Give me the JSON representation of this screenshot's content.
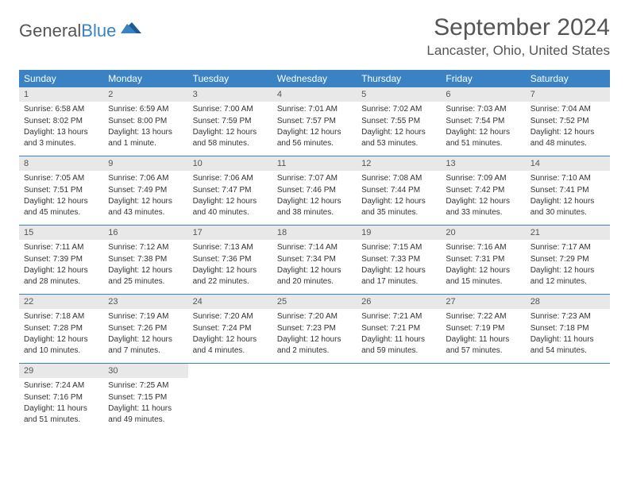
{
  "brand": {
    "part1": "General",
    "part2": "Blue"
  },
  "title": "September 2024",
  "location": "Lancaster, Ohio, United States",
  "header_bg": "#3b82c4",
  "daynum_bg": "#e8e8e8",
  "weekdays": [
    "Sunday",
    "Monday",
    "Tuesday",
    "Wednesday",
    "Thursday",
    "Friday",
    "Saturday"
  ],
  "weeks": [
    [
      {
        "num": "1",
        "sunrise": "Sunrise: 6:58 AM",
        "sunset": "Sunset: 8:02 PM",
        "daylight": "Daylight: 13 hours and 3 minutes."
      },
      {
        "num": "2",
        "sunrise": "Sunrise: 6:59 AM",
        "sunset": "Sunset: 8:00 PM",
        "daylight": "Daylight: 13 hours and 1 minute."
      },
      {
        "num": "3",
        "sunrise": "Sunrise: 7:00 AM",
        "sunset": "Sunset: 7:59 PM",
        "daylight": "Daylight: 12 hours and 58 minutes."
      },
      {
        "num": "4",
        "sunrise": "Sunrise: 7:01 AM",
        "sunset": "Sunset: 7:57 PM",
        "daylight": "Daylight: 12 hours and 56 minutes."
      },
      {
        "num": "5",
        "sunrise": "Sunrise: 7:02 AM",
        "sunset": "Sunset: 7:55 PM",
        "daylight": "Daylight: 12 hours and 53 minutes."
      },
      {
        "num": "6",
        "sunrise": "Sunrise: 7:03 AM",
        "sunset": "Sunset: 7:54 PM",
        "daylight": "Daylight: 12 hours and 51 minutes."
      },
      {
        "num": "7",
        "sunrise": "Sunrise: 7:04 AM",
        "sunset": "Sunset: 7:52 PM",
        "daylight": "Daylight: 12 hours and 48 minutes."
      }
    ],
    [
      {
        "num": "8",
        "sunrise": "Sunrise: 7:05 AM",
        "sunset": "Sunset: 7:51 PM",
        "daylight": "Daylight: 12 hours and 45 minutes."
      },
      {
        "num": "9",
        "sunrise": "Sunrise: 7:06 AM",
        "sunset": "Sunset: 7:49 PM",
        "daylight": "Daylight: 12 hours and 43 minutes."
      },
      {
        "num": "10",
        "sunrise": "Sunrise: 7:06 AM",
        "sunset": "Sunset: 7:47 PM",
        "daylight": "Daylight: 12 hours and 40 minutes."
      },
      {
        "num": "11",
        "sunrise": "Sunrise: 7:07 AM",
        "sunset": "Sunset: 7:46 PM",
        "daylight": "Daylight: 12 hours and 38 minutes."
      },
      {
        "num": "12",
        "sunrise": "Sunrise: 7:08 AM",
        "sunset": "Sunset: 7:44 PM",
        "daylight": "Daylight: 12 hours and 35 minutes."
      },
      {
        "num": "13",
        "sunrise": "Sunrise: 7:09 AM",
        "sunset": "Sunset: 7:42 PM",
        "daylight": "Daylight: 12 hours and 33 minutes."
      },
      {
        "num": "14",
        "sunrise": "Sunrise: 7:10 AM",
        "sunset": "Sunset: 7:41 PM",
        "daylight": "Daylight: 12 hours and 30 minutes."
      }
    ],
    [
      {
        "num": "15",
        "sunrise": "Sunrise: 7:11 AM",
        "sunset": "Sunset: 7:39 PM",
        "daylight": "Daylight: 12 hours and 28 minutes."
      },
      {
        "num": "16",
        "sunrise": "Sunrise: 7:12 AM",
        "sunset": "Sunset: 7:38 PM",
        "daylight": "Daylight: 12 hours and 25 minutes."
      },
      {
        "num": "17",
        "sunrise": "Sunrise: 7:13 AM",
        "sunset": "Sunset: 7:36 PM",
        "daylight": "Daylight: 12 hours and 22 minutes."
      },
      {
        "num": "18",
        "sunrise": "Sunrise: 7:14 AM",
        "sunset": "Sunset: 7:34 PM",
        "daylight": "Daylight: 12 hours and 20 minutes."
      },
      {
        "num": "19",
        "sunrise": "Sunrise: 7:15 AM",
        "sunset": "Sunset: 7:33 PM",
        "daylight": "Daylight: 12 hours and 17 minutes."
      },
      {
        "num": "20",
        "sunrise": "Sunrise: 7:16 AM",
        "sunset": "Sunset: 7:31 PM",
        "daylight": "Daylight: 12 hours and 15 minutes."
      },
      {
        "num": "21",
        "sunrise": "Sunrise: 7:17 AM",
        "sunset": "Sunset: 7:29 PM",
        "daylight": "Daylight: 12 hours and 12 minutes."
      }
    ],
    [
      {
        "num": "22",
        "sunrise": "Sunrise: 7:18 AM",
        "sunset": "Sunset: 7:28 PM",
        "daylight": "Daylight: 12 hours and 10 minutes."
      },
      {
        "num": "23",
        "sunrise": "Sunrise: 7:19 AM",
        "sunset": "Sunset: 7:26 PM",
        "daylight": "Daylight: 12 hours and 7 minutes."
      },
      {
        "num": "24",
        "sunrise": "Sunrise: 7:20 AM",
        "sunset": "Sunset: 7:24 PM",
        "daylight": "Daylight: 12 hours and 4 minutes."
      },
      {
        "num": "25",
        "sunrise": "Sunrise: 7:20 AM",
        "sunset": "Sunset: 7:23 PM",
        "daylight": "Daylight: 12 hours and 2 minutes."
      },
      {
        "num": "26",
        "sunrise": "Sunrise: 7:21 AM",
        "sunset": "Sunset: 7:21 PM",
        "daylight": "Daylight: 11 hours and 59 minutes."
      },
      {
        "num": "27",
        "sunrise": "Sunrise: 7:22 AM",
        "sunset": "Sunset: 7:19 PM",
        "daylight": "Daylight: 11 hours and 57 minutes."
      },
      {
        "num": "28",
        "sunrise": "Sunrise: 7:23 AM",
        "sunset": "Sunset: 7:18 PM",
        "daylight": "Daylight: 11 hours and 54 minutes."
      }
    ],
    [
      {
        "num": "29",
        "sunrise": "Sunrise: 7:24 AM",
        "sunset": "Sunset: 7:16 PM",
        "daylight": "Daylight: 11 hours and 51 minutes."
      },
      {
        "num": "30",
        "sunrise": "Sunrise: 7:25 AM",
        "sunset": "Sunset: 7:15 PM",
        "daylight": "Daylight: 11 hours and 49 minutes."
      },
      null,
      null,
      null,
      null,
      null
    ]
  ]
}
